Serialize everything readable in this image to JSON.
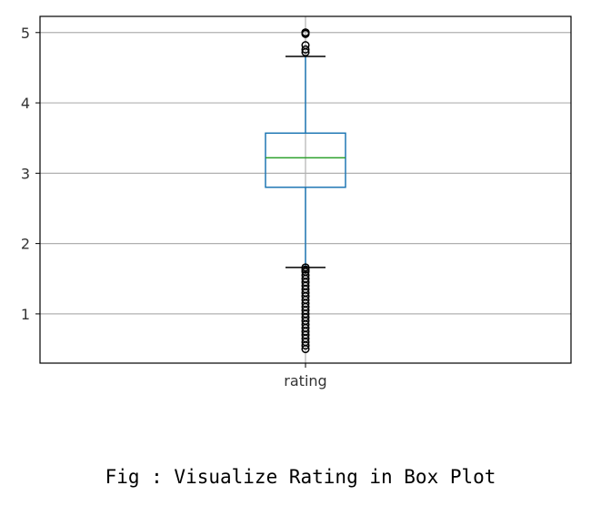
{
  "chart_data": {
    "type": "box",
    "title": "",
    "xlabel": "",
    "ylabel": "",
    "categories": [
      "rating"
    ],
    "ylim": [
      0.3,
      5.23
    ],
    "yticks": [
      1,
      2,
      3,
      4,
      5
    ],
    "grid": true,
    "box": {
      "q1": 2.8,
      "median": 3.22,
      "q3": 3.57,
      "whisker_low": 1.66,
      "whisker_high": 4.66
    },
    "outliers_high": [
      4.72,
      4.76,
      4.82,
      4.98,
      5.0,
      5.0
    ],
    "outliers_low": [
      0.5,
      0.55,
      0.6,
      0.65,
      0.7,
      0.75,
      0.8,
      0.85,
      0.9,
      0.95,
      1.0,
      1.05,
      1.1,
      1.15,
      1.2,
      1.25,
      1.3,
      1.35,
      1.4,
      1.45,
      1.5,
      1.55,
      1.6,
      1.63,
      1.66
    ],
    "colors": {
      "box": "#1f77b4",
      "median": "#2ca02c",
      "grid": "#b0b0b0",
      "frame": "#000000"
    }
  },
  "caption": "Fig : Visualize Rating in Box Plot"
}
